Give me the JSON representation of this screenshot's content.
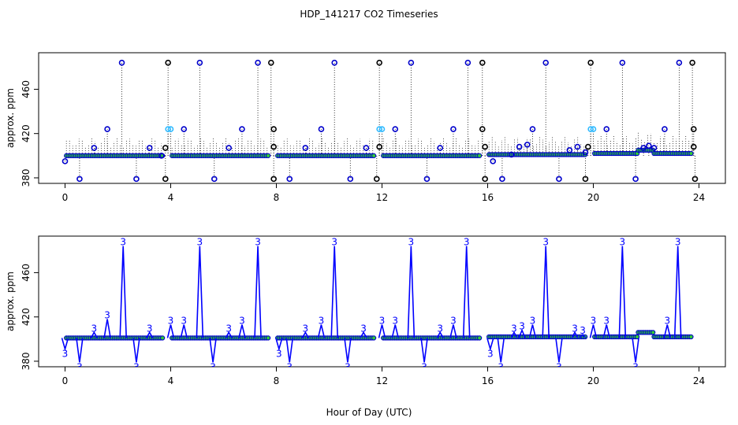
{
  "title": "HDP_141217  CO2 Timeseries",
  "xlabel": "Hour of Day (UTC)",
  "colors": {
    "calibration": "#000000",
    "measurement": "#0000cc",
    "highlight": "#33bbff",
    "fill": "#33cc33",
    "line": "#0000ff"
  },
  "chart_data": [
    {
      "type": "scatter",
      "panel": "top",
      "ylabel": "approx. ppm",
      "xlim": [
        -1,
        25
      ],
      "ylim": [
        375,
        493
      ],
      "xticks": [
        0,
        4,
        8,
        12,
        16,
        20,
        24
      ],
      "yticks": [
        380,
        420,
        460
      ],
      "grid": false,
      "baseline_segments": [
        {
          "x": [
            0.05,
            3.75
          ],
          "y": 400
        },
        {
          "x": [
            4.05,
            7.75
          ],
          "y": 400
        },
        {
          "x": [
            8.05,
            11.75
          ],
          "y": 400
        },
        {
          "x": [
            12.05,
            15.75
          ],
          "y": 400
        },
        {
          "x": [
            16.05,
            19.75
          ],
          "y": 401
        },
        {
          "x": [
            20.05,
            21.7
          ],
          "y": 402
        },
        {
          "x": [
            21.7,
            22.3
          ],
          "y": 405
        },
        {
          "x": [
            22.3,
            23.75
          ],
          "y": 402
        }
      ],
      "series": [
        {
          "label_kind": "measurement",
          "points": [
            [
              0.0,
              395
            ],
            [
              0.55,
              379
            ],
            [
              1.1,
              407
            ],
            [
              1.6,
              424
            ],
            [
              2.15,
              484
            ],
            [
              2.7,
              379
            ],
            [
              3.2,
              407
            ],
            [
              3.65,
              400
            ],
            [
              4.5,
              424
            ],
            [
              5.1,
              484
            ],
            [
              5.65,
              379
            ],
            [
              6.2,
              407
            ],
            [
              6.7,
              424
            ],
            [
              7.3,
              484
            ],
            [
              8.5,
              379
            ],
            [
              9.1,
              407
            ],
            [
              9.7,
              424
            ],
            [
              10.2,
              484
            ],
            [
              10.8,
              379
            ],
            [
              11.4,
              407
            ],
            [
              12.5,
              424
            ],
            [
              13.1,
              484
            ],
            [
              13.7,
              379
            ],
            [
              14.2,
              407
            ],
            [
              14.7,
              424
            ],
            [
              15.25,
              484
            ],
            [
              16.2,
              395
            ],
            [
              16.55,
              379
            ],
            [
              16.9,
              401
            ],
            [
              17.2,
              408
            ],
            [
              17.5,
              410
            ],
            [
              17.7,
              424
            ],
            [
              18.2,
              484
            ],
            [
              18.7,
              379
            ],
            [
              19.1,
              405
            ],
            [
              19.4,
              408
            ],
            [
              19.7,
              403
            ],
            [
              20.5,
              424
            ],
            [
              21.1,
              484
            ],
            [
              21.6,
              379
            ],
            [
              21.9,
              407
            ],
            [
              22.1,
              409
            ],
            [
              22.3,
              407
            ],
            [
              22.7,
              424
            ],
            [
              23.25,
              484
            ]
          ]
        },
        {
          "label_kind": "calibration",
          "points": [
            [
              3.8,
              379
            ],
            [
              3.8,
              407
            ],
            [
              3.9,
              484
            ],
            [
              7.8,
              484
            ],
            [
              7.9,
              424
            ],
            [
              7.9,
              408
            ],
            [
              7.9,
              379
            ],
            [
              11.8,
              379
            ],
            [
              11.9,
              408
            ],
            [
              11.9,
              484
            ],
            [
              15.8,
              484
            ],
            [
              15.8,
              424
            ],
            [
              15.9,
              408
            ],
            [
              15.9,
              379
            ],
            [
              19.7,
              379
            ],
            [
              19.8,
              408
            ],
            [
              19.9,
              484
            ],
            [
              23.75,
              484
            ],
            [
              23.8,
              424
            ],
            [
              23.8,
              408
            ],
            [
              23.85,
              379
            ]
          ]
        },
        {
          "label_kind": "highlight",
          "points": [
            [
              3.9,
              424
            ],
            [
              4.0,
              424
            ],
            [
              11.9,
              424
            ],
            [
              12.0,
              424
            ],
            [
              19.9,
              424
            ],
            [
              20.0,
              424
            ]
          ]
        }
      ]
    },
    {
      "type": "line",
      "panel": "bottom",
      "ylabel": "approx. ppm",
      "xlim": [
        -1,
        25
      ],
      "ylim": [
        375,
        493
      ],
      "xticks": [
        0,
        4,
        8,
        12,
        16,
        20,
        24
      ],
      "yticks": [
        380,
        420,
        460
      ],
      "grid": false,
      "marker_label": "3",
      "baseline_segments": [
        {
          "x": [
            0.05,
            3.75
          ],
          "y": 401
        },
        {
          "x": [
            4.05,
            7.75
          ],
          "y": 401
        },
        {
          "x": [
            8.05,
            11.75
          ],
          "y": 401
        },
        {
          "x": [
            12.05,
            15.75
          ],
          "y": 401
        },
        {
          "x": [
            16.05,
            19.75
          ],
          "y": 402
        },
        {
          "x": [
            20.05,
            21.7
          ],
          "y": 402
        },
        {
          "x": [
            21.7,
            22.3
          ],
          "y": 406
        },
        {
          "x": [
            22.3,
            23.75
          ],
          "y": 402
        }
      ],
      "markers": [
        [
          0.0,
          391
        ],
        [
          0.55,
          379
        ],
        [
          1.1,
          406
        ],
        [
          1.6,
          418
        ],
        [
          2.2,
          484
        ],
        [
          2.7,
          379
        ],
        [
          3.2,
          406
        ],
        [
          4.0,
          413
        ],
        [
          4.5,
          413
        ],
        [
          5.1,
          484
        ],
        [
          5.6,
          379
        ],
        [
          6.2,
          406
        ],
        [
          6.7,
          413
        ],
        [
          7.3,
          484
        ],
        [
          8.1,
          391
        ],
        [
          8.5,
          379
        ],
        [
          9.1,
          406
        ],
        [
          9.7,
          413
        ],
        [
          10.2,
          484
        ],
        [
          10.7,
          379
        ],
        [
          11.3,
          406
        ],
        [
          12.0,
          413
        ],
        [
          12.5,
          413
        ],
        [
          13.1,
          484
        ],
        [
          13.6,
          379
        ],
        [
          14.2,
          406
        ],
        [
          14.7,
          413
        ],
        [
          15.2,
          484
        ],
        [
          16.1,
          391
        ],
        [
          16.5,
          379
        ],
        [
          17.0,
          406
        ],
        [
          17.3,
          408
        ],
        [
          17.7,
          413
        ],
        [
          18.2,
          484
        ],
        [
          18.7,
          379
        ],
        [
          19.3,
          406
        ],
        [
          19.6,
          404
        ],
        [
          20.0,
          413
        ],
        [
          20.5,
          413
        ],
        [
          21.1,
          484
        ],
        [
          21.6,
          379
        ],
        [
          22.8,
          413
        ],
        [
          23.2,
          484
        ]
      ]
    }
  ]
}
